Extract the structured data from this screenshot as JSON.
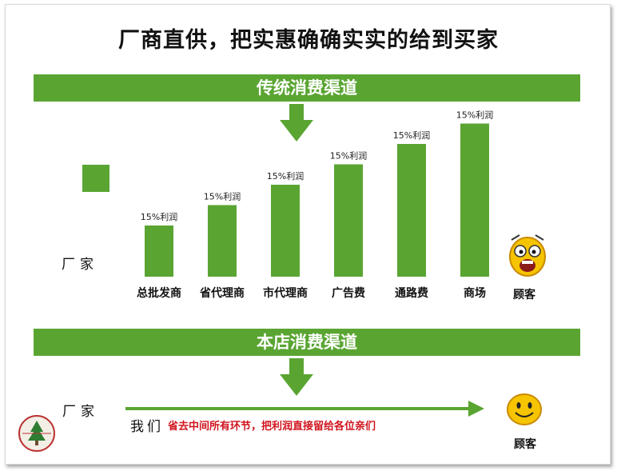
{
  "page": {
    "title": "厂商直供，把实惠确确实实的给到买家"
  },
  "banners": {
    "traditional": "传统消费渠道",
    "our_store": "本店消费渠道"
  },
  "manufacturer_label": "厂家",
  "customer_label": "顾客",
  "bottom": {
    "we": "我们",
    "slogan": "省去中间所有环节，把利润直接留给各位亲们"
  },
  "colors": {
    "green": "#5aa532",
    "red_text": "#d0141e",
    "face_yellow": "#f6c400"
  },
  "icons": [
    "down-arrow-icon",
    "right-arrow-icon",
    "shocked-face-icon",
    "smiling-face-icon",
    "tree-logo-icon"
  ],
  "chart_data": {
    "type": "bar",
    "categories": [
      "总批发商",
      "省代理商",
      "市代理商",
      "广告费",
      "通路费",
      "商场"
    ],
    "values": [
      1,
      2,
      3,
      4,
      5,
      6
    ],
    "data_labels": [
      "15%利润",
      "15%利润",
      "15%利润",
      "15%利润",
      "15%利润",
      "15%利润"
    ],
    "title": "传统消费渠道",
    "xlabel": "",
    "ylabel": "",
    "grid": false
  }
}
